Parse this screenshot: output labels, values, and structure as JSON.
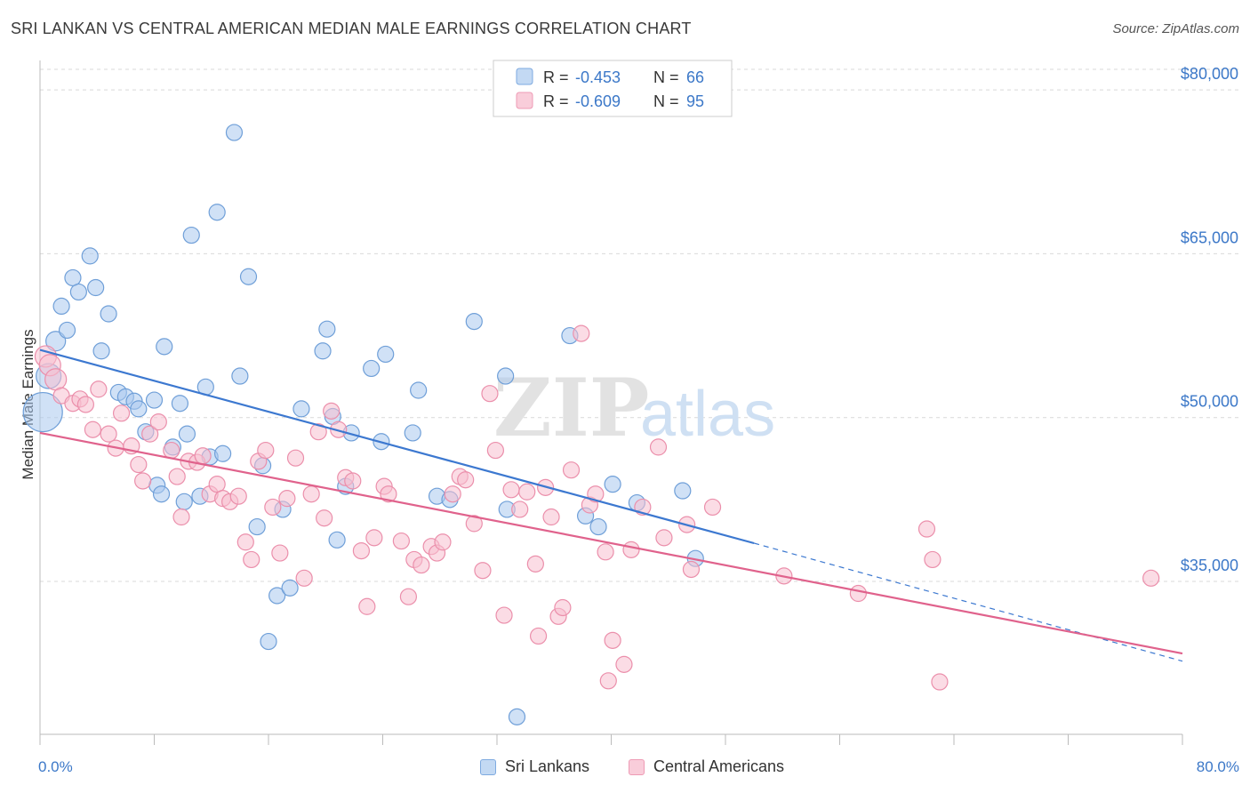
{
  "title": "SRI LANKAN VS CENTRAL AMERICAN MEDIAN MALE EARNINGS CORRELATION CHART",
  "source": "Source: ZipAtlas.com",
  "watermark": {
    "part1": "ZIP",
    "part2": "atlas"
  },
  "legend_top": [
    {
      "r_label": "R =",
      "r_value": "-0.453",
      "n_label": "N =",
      "n_value": "66",
      "color": "#8fb8e8"
    },
    {
      "r_label": "R =",
      "r_value": "-0.609",
      "n_label": "N =",
      "n_value": "95",
      "color": "#f4a8c0"
    }
  ],
  "colors": {
    "blue_fill": "#a9c8ee",
    "blue_stroke": "#6f9fd8",
    "blue_line": "#3c78d0",
    "pink_fill": "#f7bfd0",
    "pink_stroke": "#eb8fab",
    "pink_line": "#e0628c",
    "grid": "#d9d9d9",
    "tick_text": "#3c78c8"
  },
  "chart_data": {
    "type": "scatter",
    "title": "SRI LANKAN VS CENTRAL AMERICAN MEDIAN MALE EARNINGS CORRELATION CHART",
    "xlabel": "",
    "ylabel": "Median Male Earnings",
    "xlim": [
      0,
      80
    ],
    "ylim": [
      21000,
      84000
    ],
    "x_tick_labels": [
      "0.0%",
      "80.0%"
    ],
    "y_ticks": [
      {
        "value": 35000,
        "label": "$35,000"
      },
      {
        "value": 50000,
        "label": "$50,000"
      },
      {
        "value": 65000,
        "label": "$65,000"
      },
      {
        "value": 80000,
        "label": "$80,000"
      }
    ],
    "grid": true,
    "legend_position": "top-center",
    "series": [
      {
        "name": "Sri Lankans",
        "color": "#a9c8ee",
        "regression": {
          "x": [
            0,
            50
          ],
          "y": [
            56200,
            38500
          ],
          "dashed_to": {
            "x": 80,
            "y": 27700
          }
        },
        "points": [
          [
            0.2,
            50500
          ],
          [
            0.6,
            53800
          ],
          [
            1.1,
            57000
          ],
          [
            1.5,
            60200
          ],
          [
            1.9,
            58000
          ],
          [
            2.3,
            62800
          ],
          [
            2.7,
            61500
          ],
          [
            3.5,
            64800
          ],
          [
            3.9,
            61900
          ],
          [
            4.3,
            56100
          ],
          [
            4.8,
            59500
          ],
          [
            5.5,
            52300
          ],
          [
            6.0,
            51900
          ],
          [
            6.6,
            51500
          ],
          [
            6.9,
            50800
          ],
          [
            7.4,
            48700
          ],
          [
            8.0,
            51600
          ],
          [
            8.2,
            43800
          ],
          [
            8.5,
            43000
          ],
          [
            8.7,
            56500
          ],
          [
            9.3,
            47300
          ],
          [
            9.8,
            51300
          ],
          [
            10.1,
            42300
          ],
          [
            10.3,
            48500
          ],
          [
            10.6,
            66700
          ],
          [
            11.2,
            42800
          ],
          [
            11.6,
            52800
          ],
          [
            11.9,
            46400
          ],
          [
            12.4,
            68800
          ],
          [
            12.8,
            46700
          ],
          [
            13.6,
            76100
          ],
          [
            14.0,
            53800
          ],
          [
            14.6,
            62900
          ],
          [
            15.2,
            40000
          ],
          [
            15.6,
            45600
          ],
          [
            16.0,
            29500
          ],
          [
            16.6,
            33700
          ],
          [
            17.0,
            41600
          ],
          [
            17.5,
            34400
          ],
          [
            18.3,
            50800
          ],
          [
            19.8,
            56100
          ],
          [
            20.1,
            58100
          ],
          [
            20.5,
            50100
          ],
          [
            20.8,
            38800
          ],
          [
            21.4,
            43700
          ],
          [
            21.8,
            48600
          ],
          [
            23.2,
            54500
          ],
          [
            23.9,
            47800
          ],
          [
            24.2,
            55800
          ],
          [
            26.1,
            48600
          ],
          [
            26.5,
            52500
          ],
          [
            27.8,
            42800
          ],
          [
            28.7,
            42500
          ],
          [
            30.4,
            58800
          ],
          [
            32.6,
            53800
          ],
          [
            32.7,
            41600
          ],
          [
            33.4,
            22600
          ],
          [
            37.1,
            57500
          ],
          [
            38.2,
            41000
          ],
          [
            39.1,
            40000
          ],
          [
            40.1,
            43900
          ],
          [
            41.8,
            42200
          ],
          [
            45.0,
            43300
          ],
          [
            45.9,
            37100
          ]
        ]
      },
      {
        "name": "Central Americans",
        "color": "#f7bfd0",
        "regression": {
          "x": [
            0,
            80
          ],
          "y": [
            48600,
            28400
          ]
        },
        "points": [
          [
            0.4,
            55600
          ],
          [
            0.7,
            54800
          ],
          [
            1.1,
            53500
          ],
          [
            1.5,
            52000
          ],
          [
            2.3,
            51300
          ],
          [
            2.8,
            51700
          ],
          [
            3.2,
            51200
          ],
          [
            3.7,
            48900
          ],
          [
            4.1,
            52600
          ],
          [
            4.8,
            48500
          ],
          [
            5.3,
            47200
          ],
          [
            5.7,
            50400
          ],
          [
            6.4,
            47400
          ],
          [
            6.9,
            45700
          ],
          [
            7.2,
            44200
          ],
          [
            7.7,
            48500
          ],
          [
            8.3,
            49600
          ],
          [
            9.2,
            47000
          ],
          [
            9.6,
            44600
          ],
          [
            9.9,
            40900
          ],
          [
            10.4,
            46000
          ],
          [
            11.0,
            45900
          ],
          [
            11.4,
            46500
          ],
          [
            11.9,
            43000
          ],
          [
            12.4,
            43900
          ],
          [
            12.8,
            42600
          ],
          [
            13.3,
            42300
          ],
          [
            13.9,
            42800
          ],
          [
            14.4,
            38600
          ],
          [
            14.8,
            37000
          ],
          [
            15.3,
            46000
          ],
          [
            15.8,
            47000
          ],
          [
            16.3,
            41800
          ],
          [
            16.8,
            37600
          ],
          [
            17.3,
            42600
          ],
          [
            17.9,
            46300
          ],
          [
            18.5,
            35300
          ],
          [
            19.0,
            43000
          ],
          [
            19.5,
            48700
          ],
          [
            19.9,
            40800
          ],
          [
            20.4,
            50600
          ],
          [
            20.9,
            48900
          ],
          [
            21.4,
            44500
          ],
          [
            21.9,
            44200
          ],
          [
            22.5,
            37800
          ],
          [
            22.9,
            32700
          ],
          [
            23.4,
            39000
          ],
          [
            24.1,
            43700
          ],
          [
            24.4,
            43000
          ],
          [
            25.3,
            38700
          ],
          [
            25.8,
            33600
          ],
          [
            26.2,
            37000
          ],
          [
            26.7,
            36500
          ],
          [
            27.4,
            38200
          ],
          [
            27.8,
            37600
          ],
          [
            28.2,
            38600
          ],
          [
            28.9,
            43000
          ],
          [
            29.4,
            44600
          ],
          [
            29.8,
            44300
          ],
          [
            30.4,
            40300
          ],
          [
            31.0,
            36000
          ],
          [
            31.5,
            52200
          ],
          [
            31.9,
            47000
          ],
          [
            32.5,
            31900
          ],
          [
            33.0,
            43400
          ],
          [
            33.6,
            41600
          ],
          [
            34.1,
            43200
          ],
          [
            34.7,
            36600
          ],
          [
            34.9,
            30000
          ],
          [
            35.4,
            43600
          ],
          [
            35.8,
            40900
          ],
          [
            36.3,
            31800
          ],
          [
            36.6,
            32600
          ],
          [
            37.2,
            45200
          ],
          [
            37.9,
            57700
          ],
          [
            38.5,
            42000
          ],
          [
            38.9,
            43000
          ],
          [
            39.6,
            37700
          ],
          [
            39.8,
            25900
          ],
          [
            40.1,
            29600
          ],
          [
            40.9,
            27400
          ],
          [
            41.4,
            37900
          ],
          [
            42.2,
            41800
          ],
          [
            43.3,
            47300
          ],
          [
            43.7,
            39000
          ],
          [
            45.3,
            40200
          ],
          [
            45.6,
            36100
          ],
          [
            47.1,
            41800
          ],
          [
            52.1,
            35500
          ],
          [
            57.3,
            33900
          ],
          [
            62.1,
            39800
          ],
          [
            62.5,
            37000
          ],
          [
            63.0,
            25800
          ],
          [
            77.8,
            35300
          ]
        ]
      }
    ]
  }
}
